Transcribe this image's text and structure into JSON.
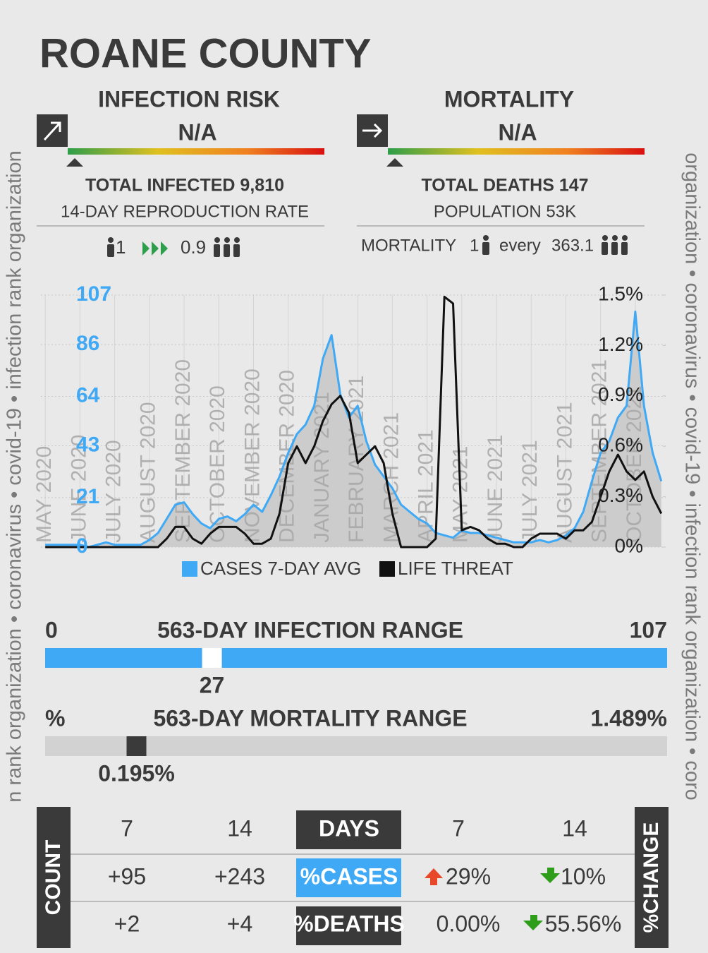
{
  "watermark": {
    "left": "n rank organization • coronavirus • covid-19 • infection rank organization",
    "right": "organization • coronavirus • covid-19 • infection rank organization • coro"
  },
  "header": {
    "title": "ROANE COUNTY"
  },
  "infection": {
    "heading": "INFECTION RISK",
    "level": "N/A",
    "total": "TOTAL INFECTED 9,810",
    "rate_label": "14-DAY REPRODUCTION RATE",
    "from": "1",
    "to": "0.9"
  },
  "mortality": {
    "heading": "MORTALITY",
    "level": "N/A",
    "total": "TOTAL DEATHS 147",
    "population": "POPULATION 53K",
    "rate_label": "MORTALITY",
    "from": "1",
    "every": "every",
    "to": "363.1"
  },
  "chart_data": {
    "type": "line",
    "categories": [
      "MAY 2020",
      null,
      null,
      null,
      "JUNE 2020",
      null,
      null,
      null,
      "JULY 2020",
      null,
      null,
      null,
      "AUGUST 2020",
      null,
      null,
      null,
      "SEPTEMBER 2020",
      null,
      null,
      null,
      "OCTOBER 2020",
      null,
      null,
      null,
      "NOVEMBER 2020",
      null,
      null,
      null,
      "DECEMBER 2020",
      null,
      null,
      null,
      "JANUARY 2021",
      null,
      null,
      null,
      "FEBRUARY 2021",
      null,
      null,
      null,
      "MARCH 2021",
      null,
      null,
      null,
      "APRIL 2021",
      null,
      null,
      null,
      "MAY 2021",
      null,
      null,
      null,
      "JUNE 2021",
      null,
      null,
      null,
      "JULY 2021",
      null,
      null,
      null,
      "AUGUST 2021",
      null,
      null,
      null,
      "SEPTEMBER 2021",
      null,
      null,
      null,
      "OCTOBER 2021",
      null,
      null,
      null
    ],
    "series": [
      {
        "name": "CASES 7-DAY AVG",
        "color": "#3fa9f5",
        "axis": "y",
        "values": [
          1,
          1,
          1,
          1,
          1,
          0,
          1,
          2,
          1,
          1,
          1,
          1,
          3,
          6,
          12,
          18,
          19,
          14,
          10,
          8,
          12,
          13,
          11,
          14,
          18,
          15,
          22,
          30,
          40,
          48,
          52,
          60,
          80,
          90,
          65,
          55,
          60,
          45,
          35,
          30,
          25,
          18,
          15,
          12,
          10,
          6,
          5,
          4,
          7,
          6,
          6,
          5,
          4,
          3,
          2,
          2,
          2,
          3,
          2,
          3,
          5,
          8,
          15,
          28,
          40,
          45,
          55,
          60,
          100,
          60,
          40,
          28
        ]
      },
      {
        "name": "LIFE THREAT",
        "color": "#111111",
        "axis": "y2",
        "values": [
          0,
          0,
          0,
          0,
          0,
          0,
          0,
          0,
          0,
          0,
          0,
          0,
          0,
          0,
          0.05,
          0.12,
          0.12,
          0.05,
          0.02,
          0.08,
          0.12,
          0.12,
          0.12,
          0.08,
          0.02,
          0.02,
          0.05,
          0.2,
          0.5,
          0.6,
          0.5,
          0.6,
          0.75,
          0.85,
          0.9,
          0.8,
          0.5,
          0.55,
          0.6,
          0.5,
          0.2,
          0,
          0,
          0,
          0,
          0.05,
          1.49,
          1.45,
          0.1,
          0.12,
          0.1,
          0.05,
          0.02,
          0.02,
          0,
          0,
          0.05,
          0.08,
          0.08,
          0.08,
          0.05,
          0.1,
          0.1,
          0.15,
          0.3,
          0.45,
          0.55,
          0.45,
          0.4,
          0.45,
          0.3,
          0.2
        ]
      }
    ],
    "ylim": [
      0,
      107
    ],
    "yticks": [
      0,
      21,
      43,
      64,
      86,
      107
    ],
    "y2lim": [
      0,
      1.5
    ],
    "y2ticks": [
      {
        "value": 0,
        "label": "0%"
      },
      {
        "value": 0.3,
        "label": "0.3%"
      },
      {
        "value": 0.6,
        "label": "0.6%"
      },
      {
        "value": 0.9,
        "label": "0.9%"
      },
      {
        "value": 1.2,
        "label": "1.2%"
      },
      {
        "value": 1.5,
        "label": "1.5%"
      }
    ],
    "grid": true,
    "area_color": "#cccccc"
  },
  "ranges": [
    {
      "min": 0,
      "title": "563-DAY INFECTION RANGE",
      "max": 107,
      "value": 27,
      "track": "#3fa9f5",
      "marker": "#ffffff"
    },
    {
      "min_label": "%",
      "title": "563-DAY MORTALITY RANGE",
      "max": {
        "value": 1.489,
        "label": "1.489%"
      },
      "value": {
        "value": 0.195,
        "label": "0.195%"
      },
      "track": "#d2d2d2",
      "marker": "#3a3a3a"
    }
  ],
  "table": {
    "row_label": "COUNT",
    "col_label": "%CHANGE",
    "header": [
      "7",
      "14",
      "DAYS",
      "7",
      "14"
    ],
    "rows": [
      [
        "+95",
        "+243",
        "%CASES",
        "29%",
        "10%"
      ],
      [
        "+2",
        "+4",
        "%DEATHS",
        "0.00%",
        "55.56%"
      ]
    ]
  }
}
